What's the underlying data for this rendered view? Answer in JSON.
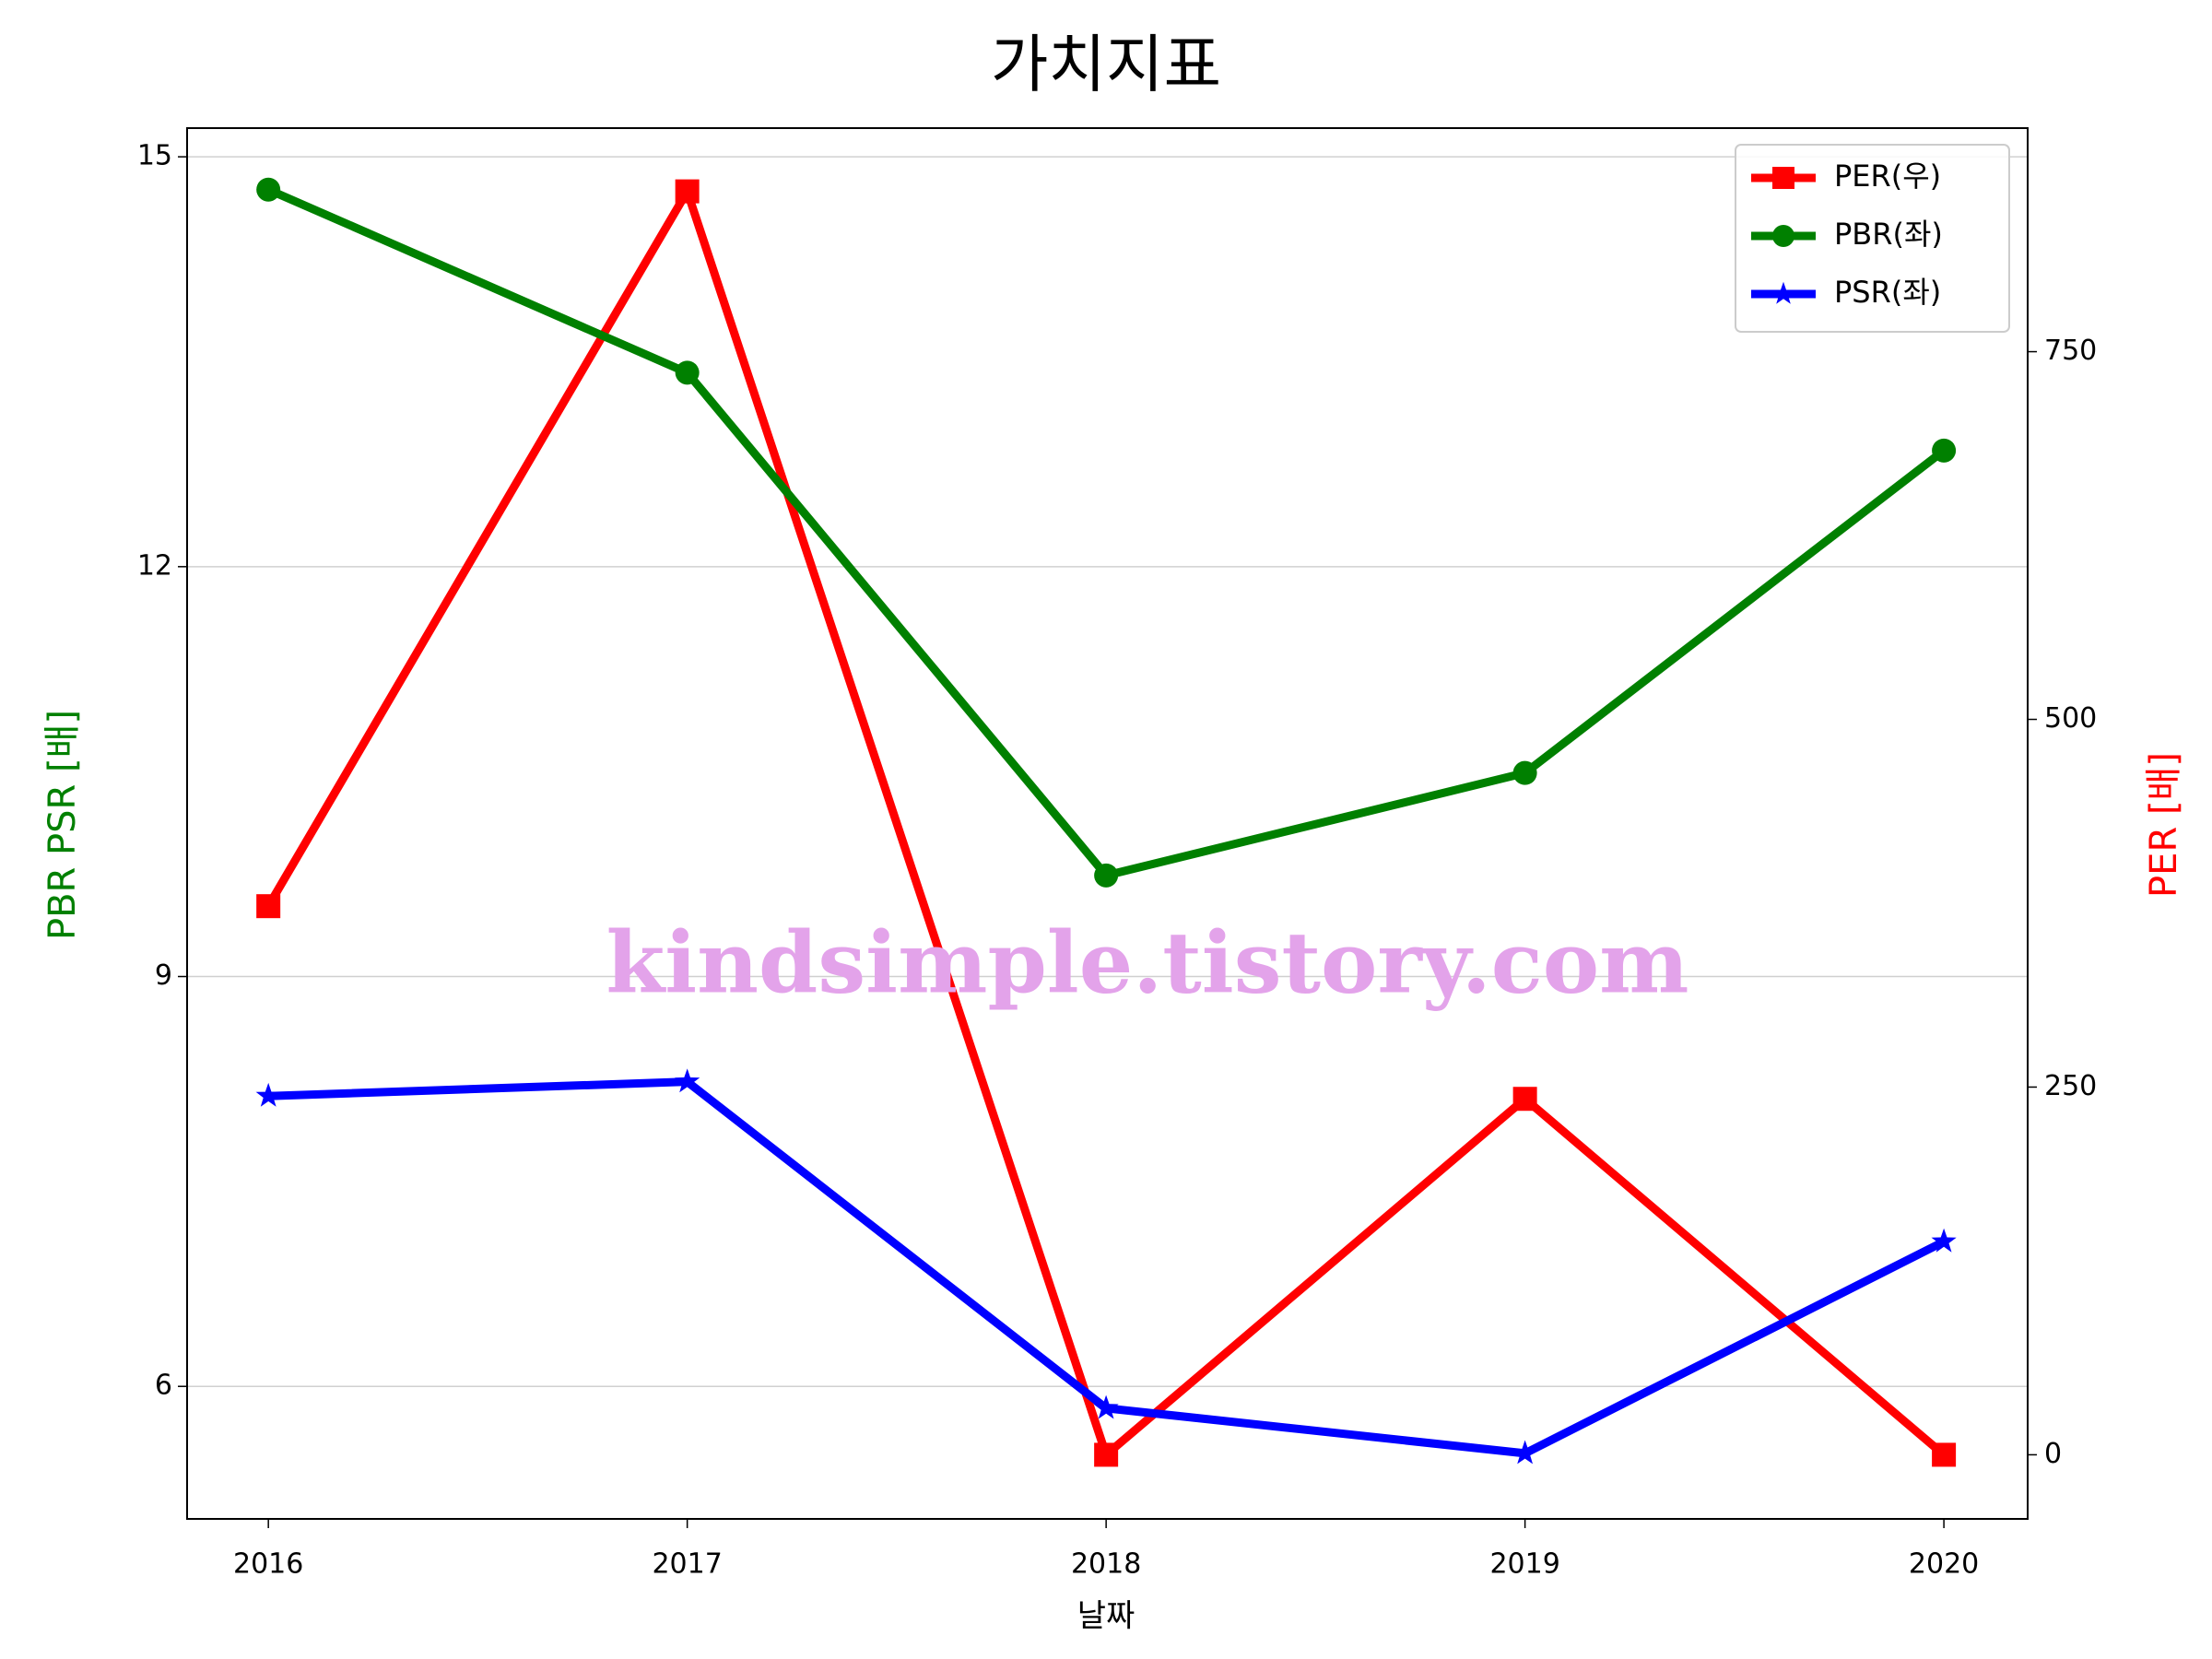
{
  "chart_data": {
    "type": "line",
    "title": "가치지표",
    "xlabel": "날짜",
    "ylabel": "PBR PSR [배]",
    "y2label": "PER [배]",
    "ylabel_color": "#008000",
    "y2label_color": "#ff0000",
    "annotation": "kindsimple.tistory.com",
    "x": [
      2016,
      2017,
      2018,
      2019,
      2020
    ],
    "xlim": [
      2015.806,
      2020.2
    ],
    "xticks": [
      2016,
      2017,
      2018,
      2019,
      2020
    ],
    "ylim": [
      5.03,
      15.21
    ],
    "yticks": [
      6,
      9,
      12,
      15
    ],
    "y2lim": [
      -43.6,
      902
    ],
    "y2ticks": [
      0,
      250,
      500,
      750
    ],
    "grid": true,
    "legend": "upper right",
    "series": [
      {
        "name": "PER(우)",
        "color": "#ff0000",
        "marker": "square",
        "axis": "y2",
        "values": [
          373,
          859,
          0,
          242,
          0
        ]
      },
      {
        "name": "PBR(좌)",
        "color": "#008000",
        "marker": "circle",
        "values": [
          14.76,
          13.42,
          9.74,
          10.49,
          12.85
        ]
      },
      {
        "name": "PSR(좌)",
        "color": "#0000ff",
        "marker": "star",
        "values": [
          8.125,
          8.23,
          5.84,
          5.51,
          7.06
        ]
      }
    ]
  }
}
